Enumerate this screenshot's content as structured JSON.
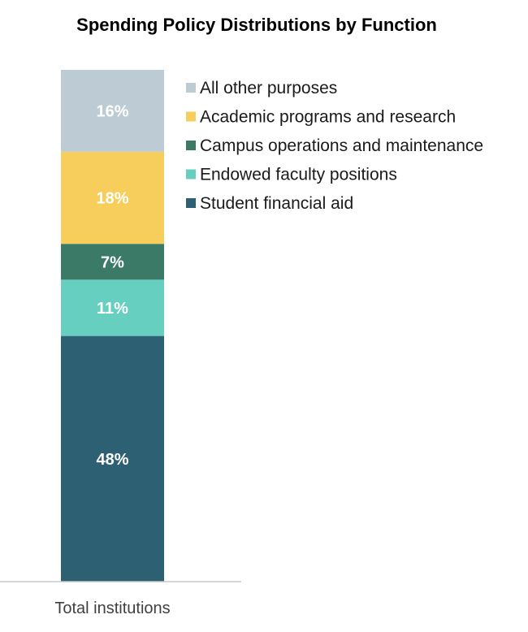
{
  "chart_data": {
    "type": "bar",
    "stacked": true,
    "title": "Spending Policy Distributions by Function",
    "categories": [
      "Total institutions"
    ],
    "series": [
      {
        "name": "Student financial aid",
        "values": [
          48
        ],
        "label": "48%",
        "color": "#2d6073"
      },
      {
        "name": "Endowed faculty positions",
        "values": [
          11
        ],
        "label": "11%",
        "color": "#66cfbf"
      },
      {
        "name": "Campus operations and maintenance",
        "values": [
          7
        ],
        "label": "7%",
        "color": "#3a7a66"
      },
      {
        "name": "Academic programs and research",
        "values": [
          18
        ],
        "label": "18%",
        "color": "#f7cd5b"
      },
      {
        "name": "All other purposes",
        "values": [
          16
        ],
        "label": "16%",
        "color": "#bccbd4"
      }
    ],
    "legend_order": [
      "All other purposes",
      "Academic programs and research",
      "Campus operations and maintenance",
      "Endowed faculty positions",
      "Student financial aid"
    ],
    "legend_position": "right",
    "ylim": [
      0,
      100
    ],
    "grid": false
  }
}
